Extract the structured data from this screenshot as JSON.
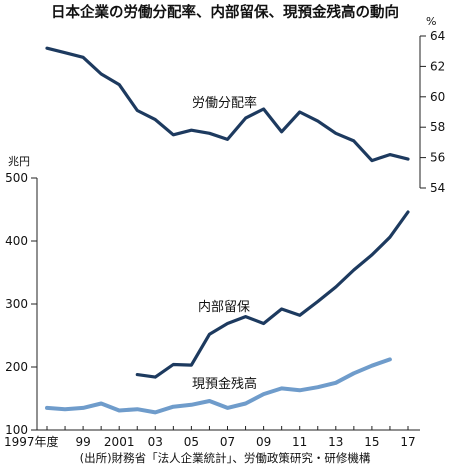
{
  "chart_data": {
    "type": "line",
    "title": "日本企業の労働分配率、内部留保、現預金残高の動向",
    "source": "(出所)財務省「法人企業統計」、労働政策研究・研修機構",
    "x_tick_labels": [
      "1997年度",
      "99",
      "2001",
      "03",
      "05",
      "07",
      "09",
      "11",
      "13",
      "15",
      "17"
    ],
    "years": [
      1997,
      1998,
      1999,
      2000,
      2001,
      2002,
      2003,
      2004,
      2005,
      2006,
      2007,
      2008,
      2009,
      2010,
      2011,
      2012,
      2013,
      2014,
      2015,
      2016,
      2017
    ],
    "right_axis": {
      "unit": "%",
      "range": [
        54,
        64
      ],
      "ticks": [
        54,
        56,
        58,
        60,
        62,
        64
      ]
    },
    "left_axis": {
      "unit": "兆円",
      "range": [
        100,
        500
      ],
      "ticks": [
        100,
        200,
        300,
        400,
        500
      ]
    },
    "series": [
      {
        "name": "労働分配率",
        "axis": "right",
        "color": "#1d3a5f",
        "x": [
          1997,
          1998,
          1999,
          2000,
          2001,
          2002,
          2003,
          2004,
          2005,
          2006,
          2007,
          2008,
          2009,
          2010,
          2011,
          2012,
          2013,
          2014,
          2015,
          2016,
          2017
        ],
        "values": [
          63.2,
          62.9,
          62.6,
          61.5,
          60.8,
          59.1,
          58.5,
          57.5,
          57.8,
          57.6,
          57.2,
          58.6,
          59.2,
          57.7,
          59.0,
          58.4,
          57.6,
          57.1,
          55.8,
          56.2,
          55.9
        ]
      },
      {
        "name": "内部留保",
        "axis": "left",
        "color": "#1d3a5f",
        "x": [
          2002,
          2003,
          2004,
          2005,
          2006,
          2007,
          2008,
          2009,
          2010,
          2011,
          2012,
          2013,
          2014,
          2015,
          2016,
          2017
        ],
        "values": [
          188,
          184,
          204,
          203,
          252,
          269,
          280,
          269,
          292,
          282,
          304,
          327,
          354,
          378,
          406,
          446
        ]
      },
      {
        "name": "現預金残高",
        "axis": "left",
        "color": "#6f9ccb",
        "x": [
          1997,
          1998,
          1999,
          2000,
          2001,
          2002,
          2003,
          2004,
          2005,
          2006,
          2007,
          2008,
          2009,
          2010,
          2011,
          2012,
          2013,
          2014,
          2015,
          2016
        ],
        "values": [
          135,
          133,
          135,
          142,
          131,
          133,
          128,
          137,
          140,
          146,
          135,
          142,
          157,
          166,
          163,
          168,
          175,
          190,
          202,
          212
        ]
      }
    ]
  }
}
